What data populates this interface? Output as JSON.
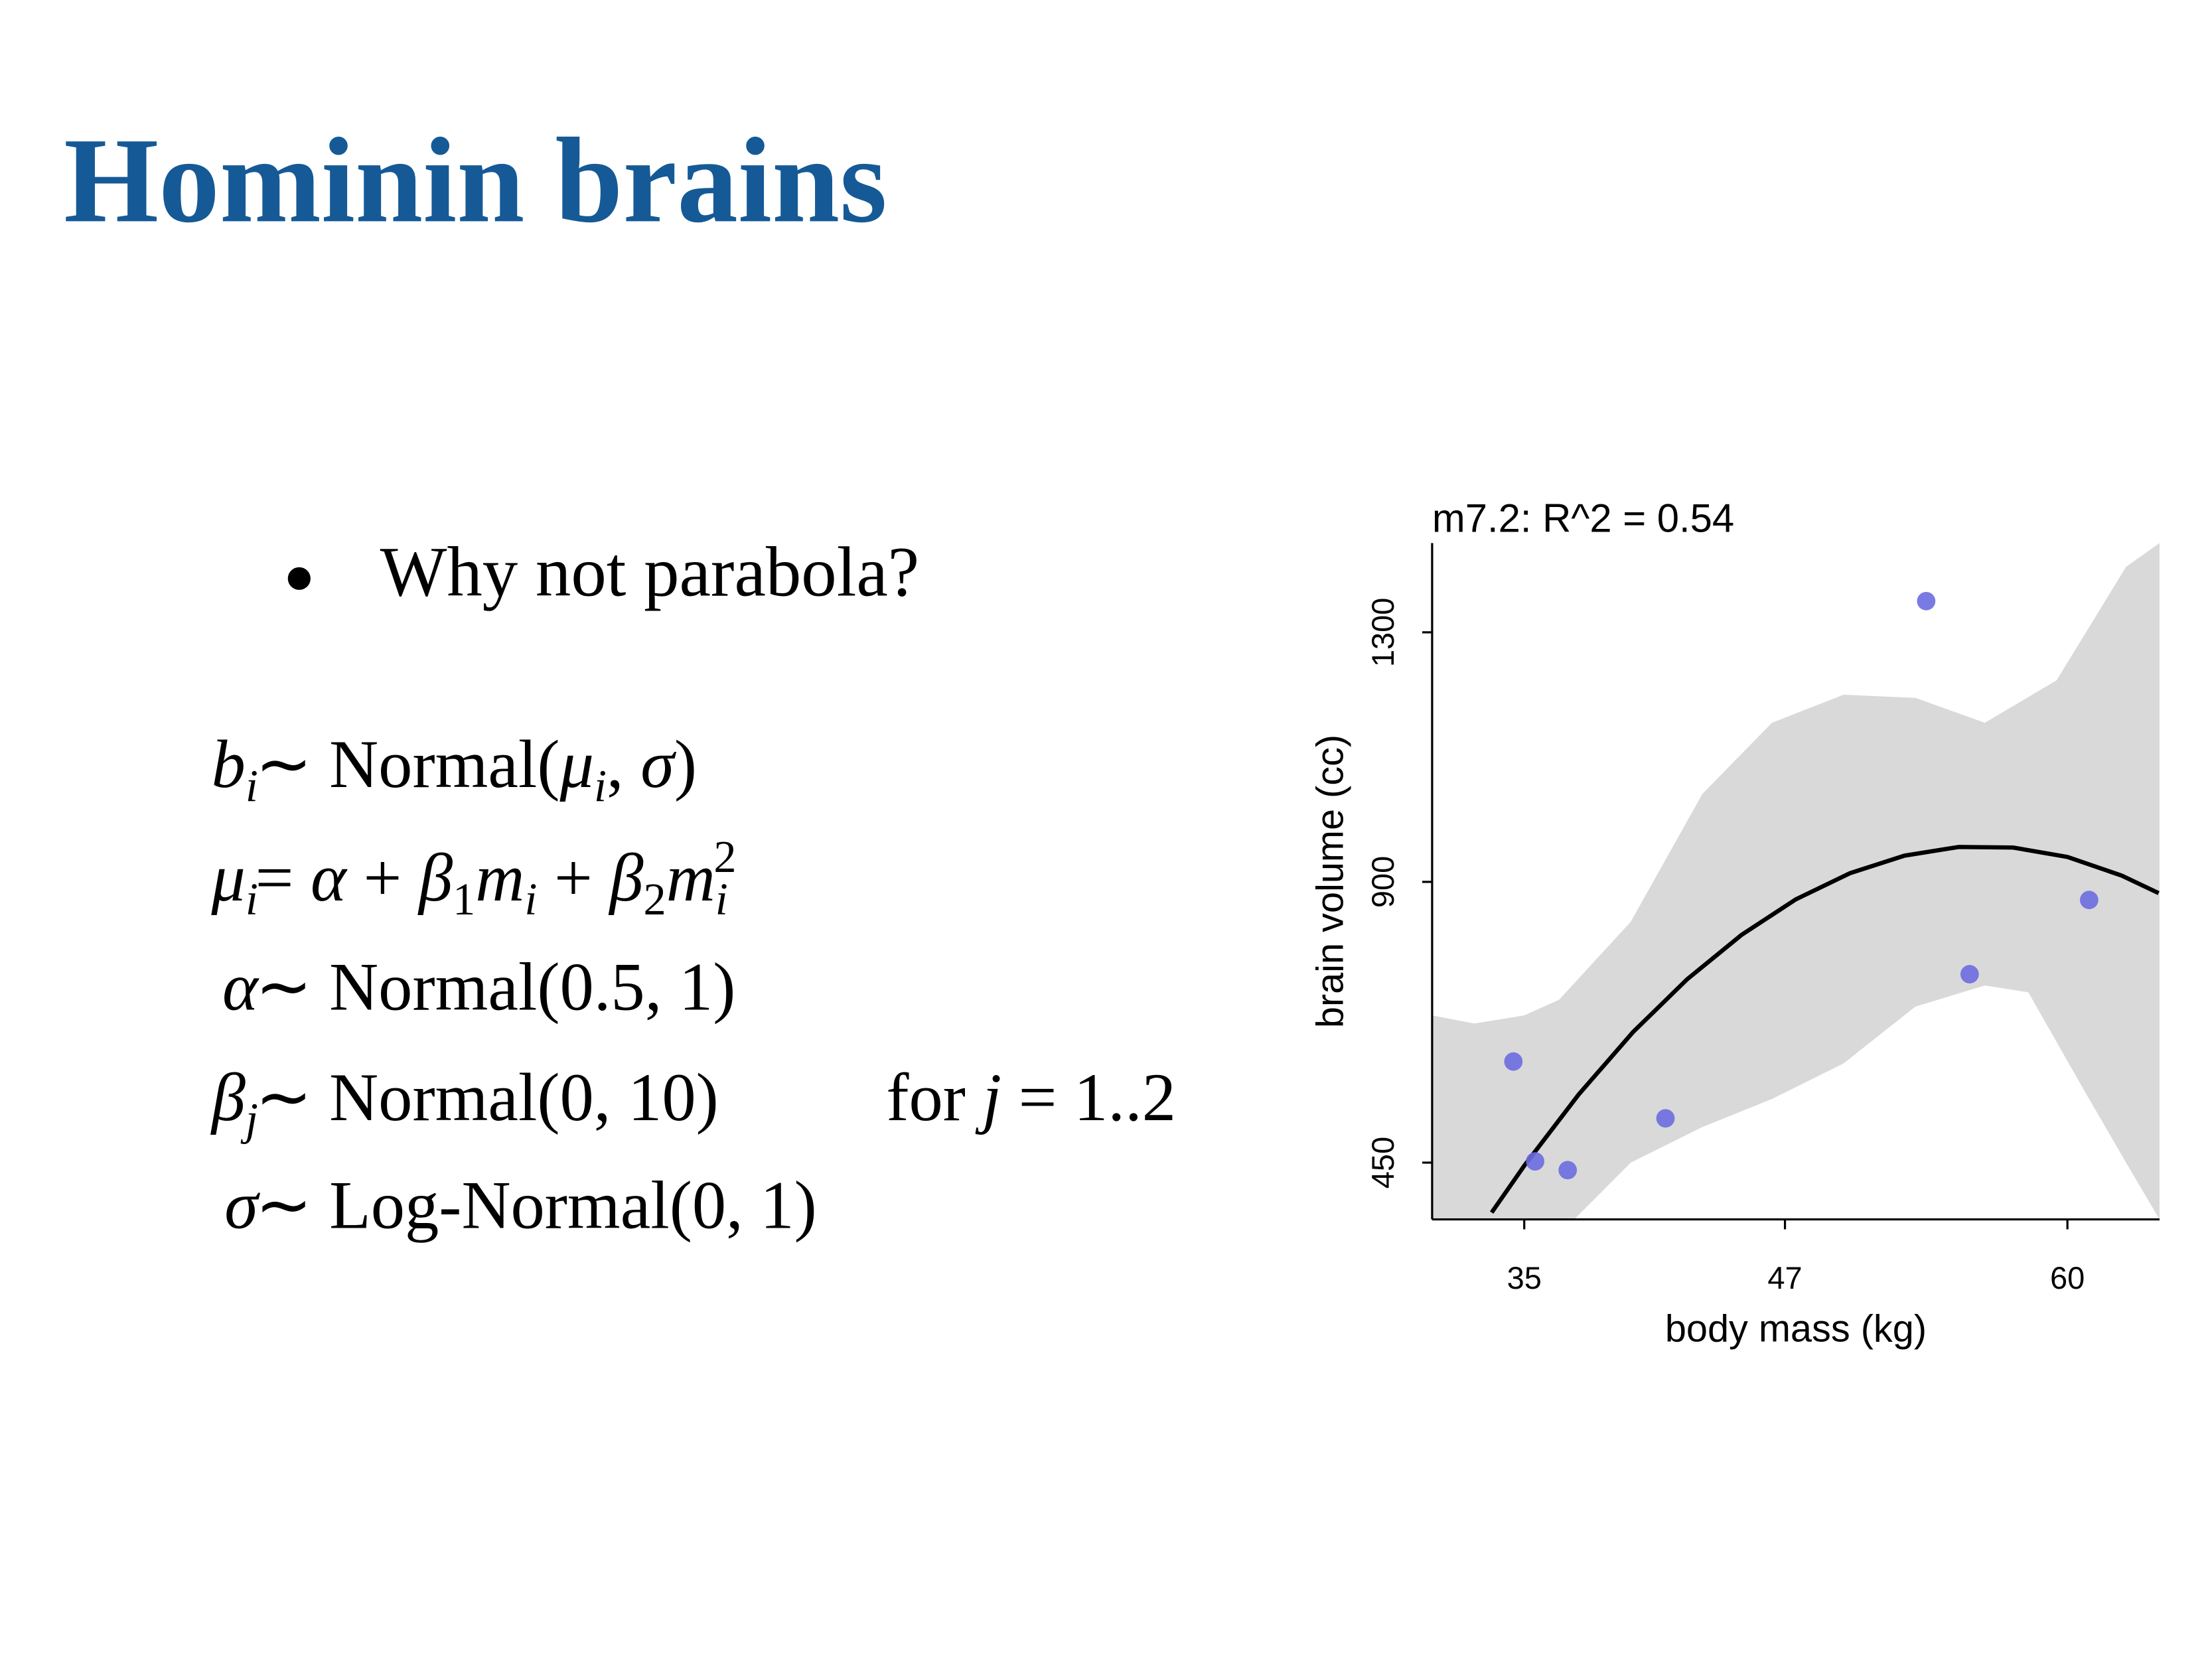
{
  "slide": {
    "title": "Hominin brains",
    "bullet": "Why not parabola?",
    "equations": [
      {
        "lhs": [
          [
            "b",
            "i"
          ],
          [
            "i",
            "sub"
          ]
        ],
        "rhs": [
          [
            " ∼ Normal(",
            ""
          ],
          [
            "μ",
            "i"
          ],
          [
            "i",
            "sub"
          ],
          [
            ", ",
            ""
          ],
          [
            "σ",
            "i"
          ],
          [
            ")",
            ""
          ]
        ]
      },
      {
        "lhs": [
          [
            "μ",
            "i"
          ],
          [
            "i",
            "sub"
          ]
        ],
        "rhs": [
          [
            " = ",
            ""
          ],
          [
            "α",
            "i"
          ],
          [
            " + ",
            ""
          ],
          [
            "β",
            "i"
          ],
          [
            "1",
            "sub"
          ],
          [
            "m",
            "i"
          ],
          [
            "i",
            "sub"
          ],
          [
            " + ",
            ""
          ],
          [
            "β",
            "i"
          ],
          [
            "2",
            "sub"
          ],
          [
            "m",
            "i"
          ],
          [
            "i",
            "sub"
          ],
          [
            "2",
            "sup"
          ]
        ]
      },
      {
        "lhs": [
          [
            "α",
            "i"
          ]
        ],
        "rhs": [
          [
            " ∼ Normal(0.5, 1)",
            ""
          ]
        ]
      },
      {
        "lhs": [
          [
            "β",
            "i"
          ],
          [
            "j",
            "sub"
          ]
        ],
        "rhs": [
          [
            " ∼ Normal(0, 10)",
            ""
          ]
        ],
        "note": [
          [
            "for ",
            ""
          ],
          [
            "j",
            "i"
          ],
          [
            " = 1..2",
            ""
          ]
        ]
      },
      {
        "lhs": [
          [
            "σ",
            "i"
          ]
        ],
        "rhs": [
          [
            " ∼ Log-Normal(0, 1)",
            ""
          ]
        ]
      }
    ]
  },
  "chart_data": {
    "type": "scatter",
    "title": "m7.2: R^2 = 0.54",
    "x_label": "body mass (kg)",
    "y_label": "brain volume (cc)",
    "xlim": [
      30.76,
      64.24
    ],
    "ylim": [
      359,
      1443
    ],
    "xticks": [
      35,
      47,
      60
    ],
    "yticks": [
      450,
      900,
      1300
    ],
    "series": [
      {
        "color": "#6b6be0",
        "x": [
          37.0,
          35.5,
          34.5,
          41.5,
          55.5,
          61.0,
          53.5
        ],
        "values": [
          438,
          452,
          612,
          521,
          752,
          871,
          1350
        ]
      }
    ],
    "fit": {
      "color": "#000000",
      "x": [
        33.5,
        35,
        37.5,
        40,
        42.5,
        45,
        47.5,
        50,
        52.5,
        55,
        57.5,
        60,
        62.5,
        64.2
      ],
      "values": [
        370,
        445,
        559,
        659,
        744,
        815,
        872,
        914,
        942,
        956,
        955,
        940,
        910,
        882
      ]
    },
    "band": {
      "color": "#d9d9d9",
      "upper": {
        "x": [
          30.76,
          32.7,
          35,
          36.6,
          39.9,
          43.2,
          46.4,
          49.7,
          53,
          56.2,
          59.5,
          62.7,
          64.24
        ],
        "values": [
          686,
          673,
          686,
          711,
          836,
          1041,
          1155,
          1200,
          1195,
          1155,
          1223,
          1405,
          1443
        ]
      },
      "lower": {
        "x": [
          30.76,
          37.3,
          39.9,
          43.2,
          46.4,
          49.7,
          53,
          56.2,
          58.2,
          60.8,
          62.7,
          64.24
        ],
        "values": [
          359,
          359,
          450,
          507,
          552,
          609,
          700,
          734,
          723,
          564,
          450,
          359
        ]
      }
    }
  }
}
